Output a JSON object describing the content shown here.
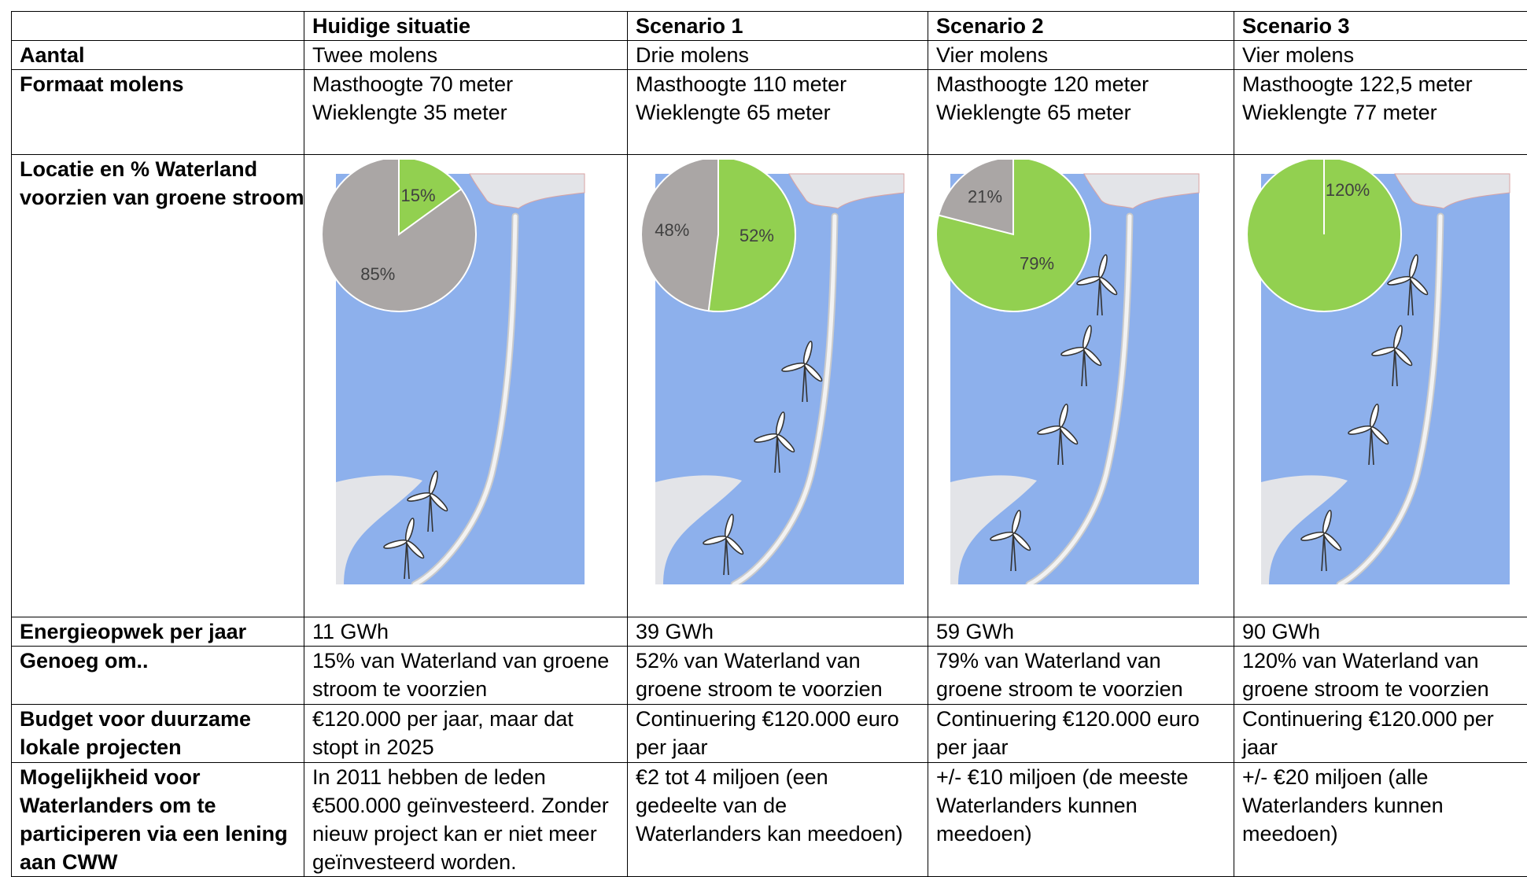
{
  "header": {
    "corner": "",
    "columns": [
      "Huidige situatie",
      "Scenario 1",
      "Scenario 2",
      "Scenario 3"
    ]
  },
  "rows": {
    "aantal": {
      "label": "Aantal",
      "values": [
        "Twee molens",
        "Drie molens",
        "Vier molens",
        "Vier molens"
      ]
    },
    "formaat": {
      "label": "Formaat molens",
      "values": [
        [
          "Masthoogte 70 meter",
          "Wieklengte 35 meter"
        ],
        [
          "Masthoogte 110 meter",
          "Wieklengte 65 meter"
        ],
        [
          "Masthoogte 120 meter",
          "Wieklengte 65 meter"
        ],
        [
          "Masthoogte 122,5 meter",
          "Wieklengte 77 meter"
        ]
      ]
    },
    "locatie": {
      "label_lines": [
        "Locatie en % Waterland",
        "voorzien van groene stroom"
      ]
    },
    "energie": {
      "label": "Energieopwek per jaar",
      "values": [
        "11 GWh",
        "39 GWh",
        "59 GWh",
        "90 GWh"
      ]
    },
    "genoeg": {
      "label": "Genoeg om..",
      "values": [
        [
          "15% van Waterland van groene",
          "stroom te voorzien"
        ],
        [
          "52% van Waterland van",
          "groene stroom te voorzien"
        ],
        [
          "79% van Waterland van",
          "groene stroom te voorzien"
        ],
        [
          "120% van Waterland van",
          "groene stroom te voorzien"
        ]
      ]
    },
    "budget": {
      "label_lines": [
        "Budget voor duurzame",
        "lokale projecten"
      ],
      "values": [
        [
          "€120.000 per jaar, maar dat",
          "stopt in 2025"
        ],
        [
          "Continuering €120.000 euro",
          "per jaar"
        ],
        [
          "Continuering €120.000 euro",
          "per jaar"
        ],
        [
          "Continuering €120.000 per",
          "jaar"
        ]
      ]
    },
    "mogelijkheid": {
      "label_lines": [
        "Mogelijkheid voor",
        "Waterlanders om te",
        "participeren via een lening",
        "aan CWW"
      ],
      "values": [
        [
          "In 2011 hebben de leden",
          "€500.000 geïnvesteerd. Zonder",
          "nieuw project kan er niet meer",
          "geïnvesteerd worden."
        ],
        [
          "€2 tot 4 miljoen (een",
          "gedeelte van de",
          "Waterlanders kan meedoen)"
        ],
        [
          "+/- €10 miljoen (de meeste",
          "Waterlanders kunnen",
          "meedoen)"
        ],
        [
          "+/- €20 miljoen (alle",
          "Waterlanders kunnen",
          "meedoen)"
        ]
      ]
    }
  },
  "maps": [
    {
      "turbines": 2,
      "pie": {
        "green_pct": 15,
        "green_label": "15%",
        "gray_label": "85%"
      }
    },
    {
      "turbines": 3,
      "pie": {
        "green_pct": 52,
        "green_label": "52%",
        "gray_label": "48%"
      }
    },
    {
      "turbines": 4,
      "pie": {
        "green_pct": 79,
        "green_label": "79%",
        "gray_label": "21%"
      }
    },
    {
      "turbines": 4,
      "pie": {
        "green_pct": 100,
        "green_label": "120%",
        "gray_label": ""
      }
    }
  ],
  "colors": {
    "water": "#8db0ec",
    "land": "#e3e4e8",
    "dike": "#f2f2f2",
    "green": "#92d050",
    "gray": "#aaa6a5"
  }
}
